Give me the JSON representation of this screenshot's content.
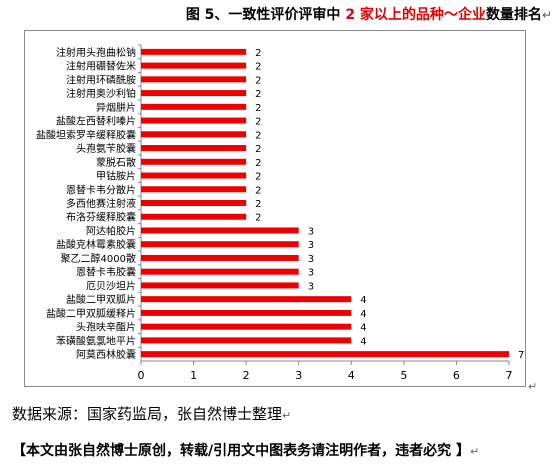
{
  "header": {
    "title_part1": "图 5、一致性评价评审中 ",
    "title_part2": "2 家以上",
    "title_part3": "的品种",
    "title_part4": "企业",
    "title_part5": "数量排名",
    "title_connector": "～",
    "paragraph_mark": "↵"
  },
  "footer": {
    "source": "数据来源：国家药监局，张自然博士整理",
    "notice": "【本文由张自然博士原创，转载/引用文中图表务请注明作者，违者必究 】",
    "paragraph_mark": "↵"
  },
  "colors": {
    "bar": "#ee0000",
    "axis": "#888888"
  },
  "chart_data": {
    "type": "bar",
    "orientation": "horizontal",
    "categories": [
      "注射用头孢曲松钠",
      "注射用硼替佐米",
      "注射用环磷酰胺",
      "注射用奥沙利铂",
      "异烟肼片",
      "盐酸左西替利嗪片",
      "盐酸坦索罗辛缓释胶囊",
      "头孢氨苄胶囊",
      "蒙脱石散",
      "甲钴胺片",
      "恩替卡韦分散片",
      "多西他赛注射液",
      "布洛芬缓释胶囊",
      "阿达帕胶片",
      "盐酸克林霉素胶囊",
      "聚乙二醇4000散",
      "恩替卡韦胶囊",
      "厄贝沙坦片",
      "盐酸二甲双胍片",
      "盐酸二甲双胍缓释片",
      "头孢呋辛酯片",
      "苯磺酸氨氯地平片",
      "阿莫西林胶囊"
    ],
    "values": [
      2,
      2,
      2,
      2,
      2,
      2,
      2,
      2,
      2,
      2,
      2,
      2,
      2,
      3,
      3,
      3,
      3,
      3,
      4,
      4,
      4,
      4,
      7
    ],
    "xlim": [
      0,
      7
    ],
    "xticks": [
      0,
      1,
      2,
      3,
      4,
      5,
      6,
      7
    ],
    "data_labels": true,
    "legend": "none",
    "grid": false
  }
}
